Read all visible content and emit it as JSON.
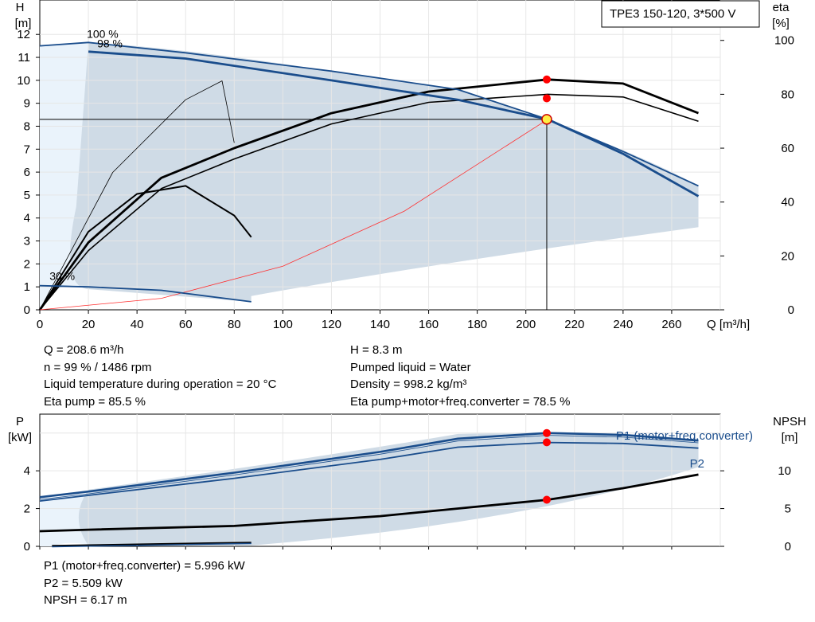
{
  "chart_data": [
    {
      "type": "line",
      "title": "TPE3 150-120, 3*500 V",
      "xlabel": "Q [m³/h]",
      "ylabel_unit_name": "H",
      "ylabel_unit": "[m]",
      "y2label_name": "eta",
      "y2label_unit": "[%]",
      "xlim": [
        0,
        280
      ],
      "ylim": [
        0,
        13.5
      ],
      "y2lim": [
        0,
        115
      ],
      "x_ticks": [
        0,
        20,
        40,
        60,
        80,
        100,
        120,
        140,
        160,
        180,
        200,
        220,
        240,
        260
      ],
      "y_ticks": [
        0,
        1,
        2,
        3,
        4,
        5,
        6,
        7,
        8,
        9,
        10,
        11,
        12
      ],
      "y2_ticks": [
        0,
        20,
        40,
        60,
        80,
        100
      ],
      "grid": true,
      "annotations": [
        "100 %",
        "98 %",
        "30 %"
      ],
      "series": [
        {
          "name": "100 %",
          "x": [
            0,
            20,
            60,
            120,
            172,
            209,
            240,
            271
          ],
          "y": [
            11.5,
            11.65,
            11.2,
            10.4,
            9.6,
            8.3,
            6.9,
            5.4
          ]
        },
        {
          "name": "98 %",
          "x": [
            20,
            60,
            120,
            172,
            209,
            240,
            271
          ],
          "y": [
            11.25,
            10.95,
            10.0,
            9.15,
            8.3,
            6.8,
            4.95
          ]
        },
        {
          "name": "30 %",
          "x": [
            0,
            20,
            50,
            87
          ],
          "y": [
            1.05,
            1.0,
            0.85,
            0.35
          ]
        }
      ],
      "eta_series": [
        {
          "x": [
            0,
            20,
            50,
            80,
            120,
            160,
            209,
            240,
            271
          ],
          "y": [
            0,
            22,
            45,
            56,
            69,
            77,
            80,
            79,
            70
          ]
        },
        {
          "x": [
            0,
            20,
            50,
            80,
            120,
            160,
            209,
            240,
            271
          ],
          "y": [
            0,
            25,
            49,
            60,
            73,
            81,
            85.5,
            84,
            73
          ]
        },
        {
          "x": [
            0,
            20,
            40,
            60,
            80,
            87
          ],
          "y": [
            0,
            29,
            43,
            46,
            35,
            27
          ]
        },
        {
          "x": [
            0,
            30,
            60,
            75,
            80
          ],
          "y": [
            0,
            51,
            78,
            85,
            62
          ]
        }
      ],
      "system_curve": {
        "x": [
          0,
          50,
          100,
          150,
          209
        ],
        "y": [
          0,
          0.5,
          1.9,
          4.3,
          8.3
        ]
      },
      "operating_point": {
        "Q": 208.6,
        "H": 8.3,
        "eta_pump": 85.5,
        "eta_total": 78.5
      }
    },
    {
      "type": "line",
      "ylabel_unit_name": "P",
      "ylabel_unit": "[kW]",
      "y2label_name": "NPSH",
      "y2label_unit": "[m]",
      "xlim": [
        0,
        280
      ],
      "ylim": [
        0,
        7.0
      ],
      "y2lim": [
        0,
        17.5
      ],
      "y_ticks": [
        0,
        2,
        4
      ],
      "y2_ticks": [
        0,
        5,
        10
      ],
      "grid": true,
      "series": [
        {
          "name": "P1 (motor+freq.converter)",
          "x": [
            0,
            20,
            80,
            140,
            172,
            209,
            240,
            271
          ],
          "y": [
            2.6,
            2.9,
            3.9,
            5.0,
            5.7,
            6.0,
            5.9,
            5.6
          ]
        },
        {
          "name": "P2",
          "x": [
            0,
            20,
            80,
            140,
            172,
            209,
            240,
            271
          ],
          "y": [
            2.4,
            2.7,
            3.6,
            4.6,
            5.25,
            5.5,
            5.45,
            5.2
          ]
        },
        {
          "name": "NPSH",
          "axis": "y2",
          "x": [
            0,
            20,
            80,
            140,
            209,
            240,
            271
          ],
          "y": [
            2.0,
            2.2,
            2.7,
            4.0,
            6.17,
            7.7,
            9.5
          ]
        },
        {
          "name": "",
          "x": [
            5,
            87
          ],
          "y": [
            0.03,
            0.2
          ]
        }
      ],
      "operating_point": {
        "Q": 208.6,
        "P1": 5.996,
        "P2": 5.509,
        "NPSH": 6.17
      }
    }
  ],
  "info_upper_left": [
    "Q = 208.6 m³/h",
    "n = 99 % / 1486 rpm",
    "Liquid temperature during operation = 20 °C",
    "Eta pump = 85.5 %"
  ],
  "info_upper_right": [
    "H = 8.3 m",
    "Pumped liquid = Water",
    "Density = 998.2 kg/m³",
    "Eta pump+motor+freq.converter = 78.5 %"
  ],
  "info_lower": [
    "P1 (motor+freq.converter) = 5.996 kW",
    "P2 = 5.509 kW",
    "NPSH = 6.17 m"
  ],
  "colors": {
    "curve_blue": "#1a4d8c",
    "area_fill": "#cfdbe6",
    "area_light": "#eaf3fb",
    "point_red": "#ff0000",
    "point_yellow": "#ffee44"
  }
}
